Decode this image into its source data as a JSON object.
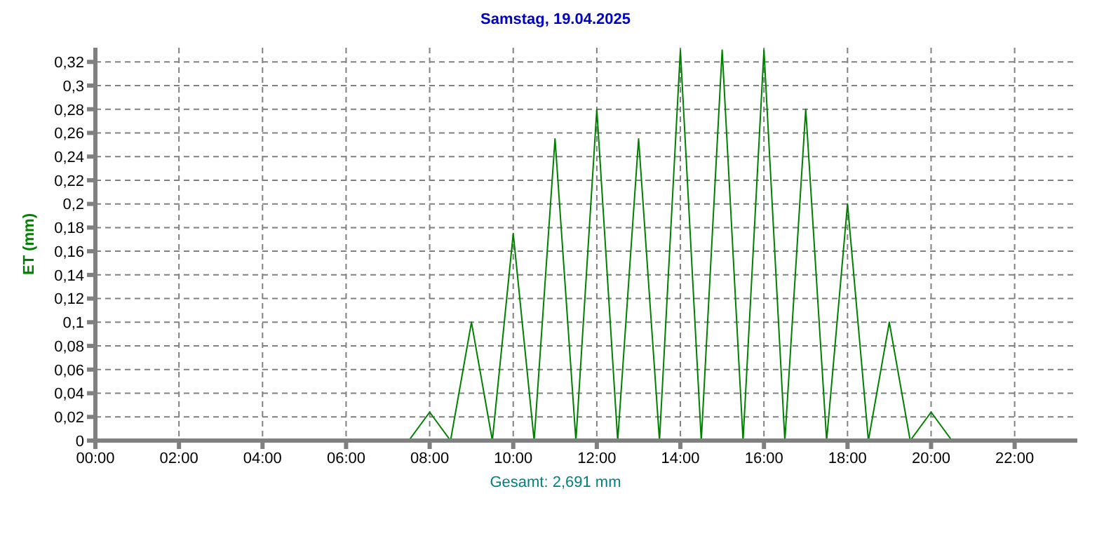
{
  "chart_data": {
    "type": "line",
    "title": "Samstag, 19.04.2025",
    "ylabel": "ET  (mm)",
    "annotations": [
      "Gesamt: 2,691 mm"
    ],
    "x": [
      0,
      7.5,
      8,
      8.5,
      9,
      9.5,
      10,
      10.5,
      11,
      11.5,
      12,
      12.5,
      13,
      13.5,
      14,
      14.5,
      15,
      15.5,
      16,
      16.5,
      17,
      17.5,
      18,
      18.5,
      19,
      19.5,
      20,
      20.5,
      23.5
    ],
    "series": [
      {
        "color": "#008000",
        "values": [
          0,
          0,
          0.024,
          0,
          0.1,
          0,
          0.175,
          0,
          0.255,
          0,
          0.28,
          0,
          0.255,
          0,
          0.33,
          0,
          0.33,
          0,
          0.33,
          0,
          0.28,
          0,
          0.2,
          0,
          0.1,
          0,
          0.024,
          0,
          0
        ]
      }
    ],
    "xlim": [
      0,
      23.5
    ],
    "xticks": [
      {
        "value": 0,
        "label": "00:00"
      },
      {
        "value": 2,
        "label": "02:00"
      },
      {
        "value": 4,
        "label": "04:00"
      },
      {
        "value": 6,
        "label": "06:00"
      },
      {
        "value": 8,
        "label": "08:00"
      },
      {
        "value": 10,
        "label": "10:00"
      },
      {
        "value": 12,
        "label": "12:00"
      },
      {
        "value": 14,
        "label": "14:00"
      },
      {
        "value": 16,
        "label": "16:00"
      },
      {
        "value": 18,
        "label": "18:00"
      },
      {
        "value": 20,
        "label": "20:00"
      },
      {
        "value": 22,
        "label": "22:00"
      }
    ],
    "ylim": [
      0,
      0.332
    ],
    "yticks": [
      0,
      {
        "value": 0.02,
        "label": "0,02"
      },
      {
        "value": 0.04,
        "label": "0,04"
      },
      {
        "value": 0.06,
        "label": "0,06"
      },
      {
        "value": 0.08,
        "label": "0,08"
      },
      {
        "value": 0.1,
        "label": "0,1"
      },
      {
        "value": 0.12,
        "label": "0,12"
      },
      {
        "value": 0.14,
        "label": "0,14"
      },
      {
        "value": 0.16,
        "label": "0,16"
      },
      {
        "value": 0.18,
        "label": "0,18"
      },
      {
        "value": 0.2,
        "label": "0,2"
      },
      {
        "value": 0.22,
        "label": "0,22"
      },
      {
        "value": 0.24,
        "label": "0,24"
      },
      {
        "value": 0.26,
        "label": "0,26"
      },
      {
        "value": 0.28,
        "label": "0,28"
      },
      {
        "value": 0.3,
        "label": "0,3"
      },
      {
        "value": 0.32,
        "label": "0,32"
      }
    ],
    "grid": true,
    "marker": "none",
    "line_style": "solid"
  }
}
